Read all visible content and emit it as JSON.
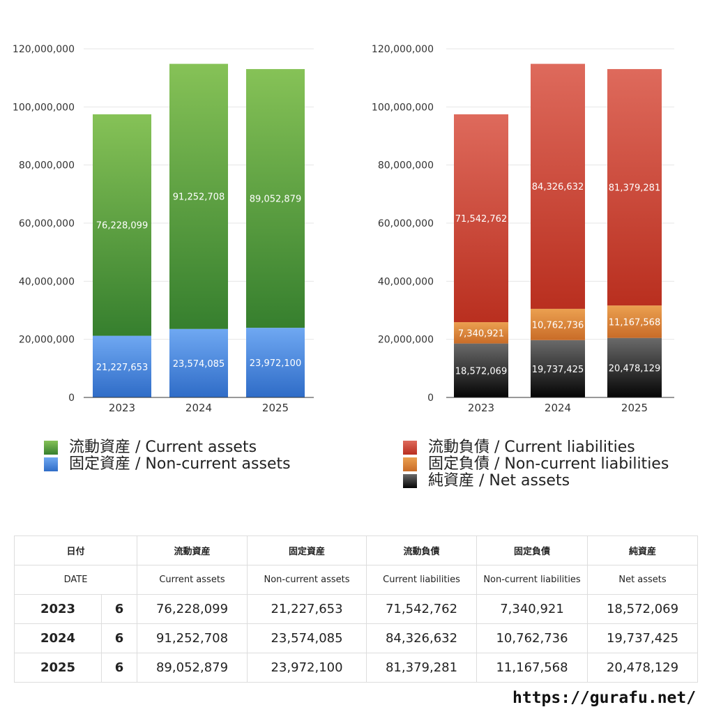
{
  "chart_data": [
    {
      "type": "bar",
      "stacked": true,
      "categories": [
        "2023",
        "2024",
        "2025"
      ],
      "yticks": [
        "0",
        "20,000,000",
        "40,000,000",
        "60,000,000",
        "80,000,000",
        "100,000,000",
        "120,000,000"
      ],
      "ylim": [
        0,
        120000000
      ],
      "grid": true,
      "series": [
        {
          "name": "固定資産 / Non-current assets",
          "values": [
            21227653,
            23574085,
            23972100
          ],
          "labels": [
            "21,227,653",
            "23,574,085",
            "23,972,100"
          ],
          "color_top": "#6fa8f2",
          "color_bottom": "#2f6cc7"
        },
        {
          "name": "流動資産 / Current assets",
          "values": [
            76228099,
            91252708,
            89052879
          ],
          "labels": [
            "76,228,099",
            "91,252,708",
            "89,052,879"
          ],
          "color_top": "#86c257",
          "color_bottom": "#367f2e"
        }
      ]
    },
    {
      "type": "bar",
      "stacked": true,
      "categories": [
        "2023",
        "2024",
        "2025"
      ],
      "yticks": [
        "0",
        "20,000,000",
        "40,000,000",
        "60,000,000",
        "80,000,000",
        "100,000,000",
        "120,000,000"
      ],
      "ylim": [
        0,
        120000000
      ],
      "grid": true,
      "series": [
        {
          "name": "純資産 / Net assets",
          "values": [
            18572069,
            19737425,
            20478129
          ],
          "labels": [
            "18,572,069",
            "19,737,425",
            "20,478,129"
          ],
          "color_top": "#6a6a6a",
          "color_bottom": "#050505"
        },
        {
          "name": "固定負債 / Non-current liabilities",
          "values": [
            7340921,
            10762736,
            11167568
          ],
          "labels": [
            "7,340,921",
            "10,762,736",
            "11,167,568"
          ],
          "color_top": "#eba050",
          "color_bottom": "#c96c28"
        },
        {
          "name": "流動負債 / Current liabilities",
          "values": [
            71542762,
            84326632,
            81379281
          ],
          "labels": [
            "71,542,762",
            "84,326,632",
            "81,379,281"
          ],
          "color_top": "#de6a5c",
          "color_bottom": "#b92f1f"
        }
      ]
    }
  ],
  "legends": {
    "assets": [
      {
        "label": "流動資産 / Current assets",
        "color_top": "#86c257",
        "color_bottom": "#367f2e"
      },
      {
        "label": "固定資産 / Non-current assets",
        "color_top": "#6fa8f2",
        "color_bottom": "#2f6cc7"
      }
    ],
    "liabilities": [
      {
        "label": "流動負債 / Current liabilities",
        "color_top": "#de6a5c",
        "color_bottom": "#b92f1f"
      },
      {
        "label": "固定負債 / Non-current liabilities",
        "color_top": "#eba050",
        "color_bottom": "#c96c28"
      },
      {
        "label": "純資産 / Net assets",
        "color_top": "#6a6a6a",
        "color_bottom": "#050505"
      }
    ]
  },
  "table": {
    "header_jp": [
      "日付",
      "流動資産",
      "固定資産",
      "流動負債",
      "固定負債",
      "純資産"
    ],
    "header_en": [
      "DATE",
      "Current assets",
      "Non-current assets",
      "Current liabilities",
      "Non-current liabilities",
      "Net assets"
    ],
    "rows": [
      {
        "year": "2023",
        "month": "6",
        "values": [
          "76,228,099",
          "21,227,653",
          "71,542,762",
          "7,340,921",
          "18,572,069"
        ]
      },
      {
        "year": "2024",
        "month": "6",
        "values": [
          "91,252,708",
          "23,574,085",
          "84,326,632",
          "10,762,736",
          "19,737,425"
        ]
      },
      {
        "year": "2025",
        "month": "6",
        "values": [
          "89,052,879",
          "23,972,100",
          "81,379,281",
          "11,167,568",
          "20,478,129"
        ]
      }
    ]
  },
  "site": "https://gurafu.net/"
}
